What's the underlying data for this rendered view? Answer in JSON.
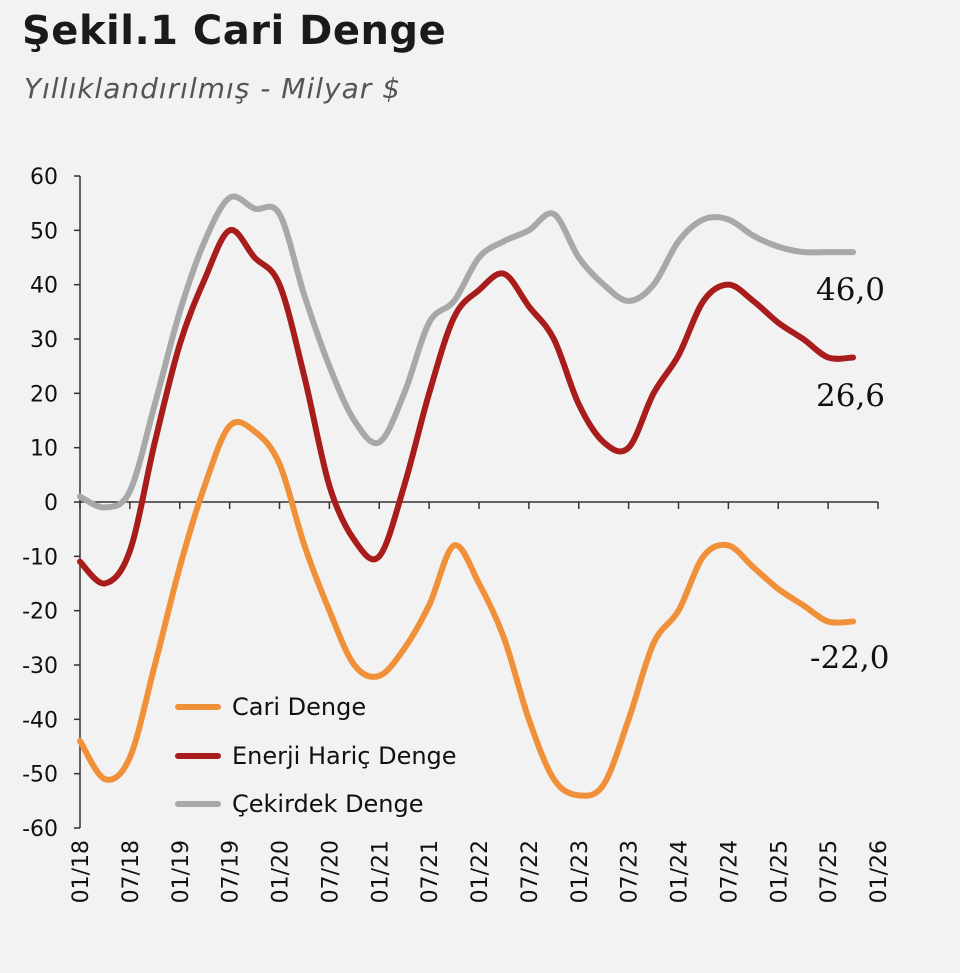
{
  "title": "Şekil.1 Cari Denge",
  "subtitle": "Yıllıklandırılmış - Milyar $",
  "chart_data": {
    "type": "line",
    "x_tick_labels": [
      "01/18",
      "07/18",
      "01/19",
      "07/19",
      "01/20",
      "07/20",
      "01/21",
      "07/21",
      "01/22",
      "07/22",
      "01/23",
      "07/23",
      "01/24",
      "07/24",
      "01/25",
      "07/25",
      "01/26"
    ],
    "x": [
      "01/18",
      "04/18",
      "07/18",
      "10/18",
      "01/19",
      "04/19",
      "07/19",
      "10/19",
      "01/20",
      "04/20",
      "07/20",
      "10/20",
      "01/21",
      "04/21",
      "07/21",
      "10/21",
      "01/22",
      "04/22",
      "07/22",
      "10/22",
      "01/23",
      "04/23",
      "07/23",
      "10/23",
      "01/24",
      "04/24",
      "07/24",
      "10/24",
      "01/25",
      "04/25",
      "07/25",
      "10/25"
    ],
    "ylim": [
      -60,
      60
    ],
    "yticks": [
      60,
      50,
      40,
      30,
      20,
      10,
      0,
      -10,
      -20,
      -30,
      -40,
      -50,
      -60
    ],
    "series": [
      {
        "name": "Cari Denge",
        "color": "#f0913a",
        "values": [
          -44,
          -51,
          -47,
          -30,
          -12,
          3,
          14,
          13,
          7,
          -8,
          -20,
          -30,
          -32,
          -27,
          -19,
          -8,
          -15,
          -25,
          -40,
          -51,
          -54,
          -52,
          -40,
          -26,
          -20,
          -10,
          -8,
          -12,
          -16,
          -19,
          -22,
          -22.0
        ]
      },
      {
        "name": "Enerji Hariç Denge",
        "color": "#a81c1c",
        "values": [
          -11,
          -15,
          -9,
          11,
          29,
          41,
          50,
          45,
          40,
          23,
          3,
          -7,
          -10,
          3,
          20,
          34,
          39,
          42,
          36,
          30,
          18,
          11,
          10,
          20,
          27,
          37,
          40,
          37,
          33,
          30,
          26.6,
          26.6
        ]
      },
      {
        "name": "Çekirdek Denge",
        "color": "#a8a8a8",
        "values": [
          1,
          -1,
          2,
          18,
          35,
          48,
          56,
          54,
          53,
          38,
          25,
          15,
          11,
          20,
          33,
          37,
          45,
          48,
          50,
          53,
          45,
          40,
          37,
          40,
          48,
          52,
          52,
          49,
          47,
          46,
          46.0,
          46.0
        ]
      }
    ],
    "end_labels": [
      "46,0",
      "26,6",
      "-22,0"
    ],
    "legend": {
      "placement": "bottom-left"
    },
    "grid": false
  }
}
